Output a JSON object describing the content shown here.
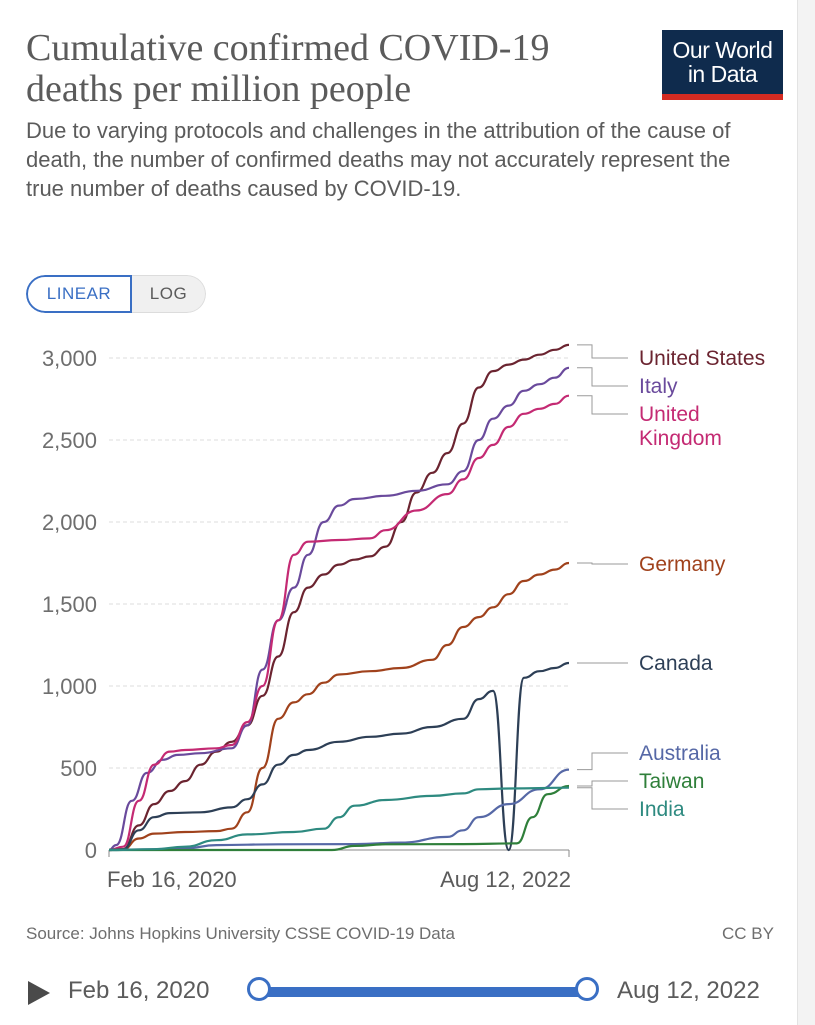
{
  "header": {
    "title": "Cumulative confirmed COVID-19 deaths per million people",
    "subtitle": "Due to varying protocols and challenges in the attribution of the cause of death, the number of confirmed deaths may not accurately represent the true number of deaths caused by COVID-19.",
    "logo_line1": "Our World",
    "logo_line2": "in Data"
  },
  "scale_toggle": {
    "linear": "LINEAR",
    "log": "LOG",
    "selected": "LINEAR"
  },
  "footer": {
    "source": "Source: Johns Hopkins University CSSE COVID-19 Data",
    "license": "CC BY"
  },
  "timeline": {
    "start": "Feb 16, 2020",
    "end": "Aug 12, 2022"
  },
  "colors": {
    "United States": "#6b2430",
    "Italy": "#6a4a9c",
    "United Kingdom": "#c42a73",
    "Germany": "#a0421c",
    "Canada": "#2d3f56",
    "Australia": "#5668a6",
    "Taiwan": "#2f7f3a",
    "India": "#2e8a80"
  },
  "chart_data": {
    "type": "line",
    "title": "Cumulative confirmed COVID-19 deaths per million people",
    "x_ticks": [
      "Feb 16, 2020",
      "Aug 12, 2022"
    ],
    "xlim": [
      "2020-02-16",
      "2022-08-12"
    ],
    "ylim": [
      0,
      3000
    ],
    "y_ticks": [
      0,
      500,
      1000,
      1500,
      2000,
      2500,
      3000
    ],
    "y_tick_labels": [
      "0",
      "500",
      "1,000",
      "1,500",
      "2,000",
      "2,500",
      "3,000"
    ],
    "grid": true,
    "legend": "right",
    "series": [
      {
        "name": "United States",
        "label_lines": [
          "United States"
        ],
        "points": [
          [
            "2020-02-16",
            0
          ],
          [
            "2020-03-15",
            5
          ],
          [
            "2020-04-15",
            150
          ],
          [
            "2020-05-15",
            280
          ],
          [
            "2020-06-15",
            360
          ],
          [
            "2020-07-15",
            420
          ],
          [
            "2020-08-15",
            520
          ],
          [
            "2020-09-15",
            600
          ],
          [
            "2020-10-15",
            660
          ],
          [
            "2020-11-15",
            760
          ],
          [
            "2020-12-15",
            940
          ],
          [
            "2021-01-15",
            1180
          ],
          [
            "2021-02-15",
            1450
          ],
          [
            "2021-03-15",
            1600
          ],
          [
            "2021-04-15",
            1680
          ],
          [
            "2021-05-15",
            1740
          ],
          [
            "2021-06-15",
            1770
          ],
          [
            "2021-07-15",
            1790
          ],
          [
            "2021-08-15",
            1850
          ],
          [
            "2021-09-15",
            2000
          ],
          [
            "2021-10-15",
            2180
          ],
          [
            "2021-11-15",
            2300
          ],
          [
            "2021-12-15",
            2420
          ],
          [
            "2022-01-15",
            2600
          ],
          [
            "2022-02-15",
            2820
          ],
          [
            "2022-03-15",
            2920
          ],
          [
            "2022-04-15",
            2960
          ],
          [
            "2022-05-15",
            2990
          ],
          [
            "2022-06-15",
            3020
          ],
          [
            "2022-07-15",
            3050
          ],
          [
            "2022-08-12",
            3080
          ]
        ]
      },
      {
        "name": "Italy",
        "label_lines": [
          "Italy"
        ],
        "points": [
          [
            "2020-02-16",
            0
          ],
          [
            "2020-03-01",
            30
          ],
          [
            "2020-04-01",
            300
          ],
          [
            "2020-05-01",
            470
          ],
          [
            "2020-06-01",
            550
          ],
          [
            "2020-07-01",
            580
          ],
          [
            "2020-08-15",
            590
          ],
          [
            "2020-10-15",
            620
          ],
          [
            "2020-11-15",
            760
          ],
          [
            "2020-12-15",
            1100
          ],
          [
            "2021-01-15",
            1400
          ],
          [
            "2021-02-15",
            1600
          ],
          [
            "2021-03-15",
            1800
          ],
          [
            "2021-04-15",
            2000
          ],
          [
            "2021-05-15",
            2100
          ],
          [
            "2021-06-15",
            2140
          ],
          [
            "2021-08-15",
            2160
          ],
          [
            "2021-10-15",
            2190
          ],
          [
            "2021-12-15",
            2230
          ],
          [
            "2022-01-15",
            2310
          ],
          [
            "2022-02-15",
            2500
          ],
          [
            "2022-03-15",
            2630
          ],
          [
            "2022-04-15",
            2710
          ],
          [
            "2022-05-15",
            2800
          ],
          [
            "2022-06-15",
            2840
          ],
          [
            "2022-07-15",
            2880
          ],
          [
            "2022-08-12",
            2940
          ]
        ]
      },
      {
        "name": "United Kingdom",
        "label_lines": [
          "United",
          "Kingdom"
        ],
        "points": [
          [
            "2020-02-16",
            0
          ],
          [
            "2020-03-15",
            20
          ],
          [
            "2020-04-15",
            300
          ],
          [
            "2020-05-15",
            520
          ],
          [
            "2020-06-15",
            600
          ],
          [
            "2020-07-15",
            610
          ],
          [
            "2020-09-15",
            620
          ],
          [
            "2020-10-15",
            640
          ],
          [
            "2020-11-15",
            780
          ],
          [
            "2020-12-15",
            1000
          ],
          [
            "2021-01-15",
            1400
          ],
          [
            "2021-02-15",
            1800
          ],
          [
            "2021-03-15",
            1880
          ],
          [
            "2021-05-15",
            1890
          ],
          [
            "2021-07-15",
            1900
          ],
          [
            "2021-08-15",
            1950
          ],
          [
            "2021-10-15",
            2070
          ],
          [
            "2021-12-15",
            2170
          ],
          [
            "2022-01-15",
            2260
          ],
          [
            "2022-02-15",
            2390
          ],
          [
            "2022-03-15",
            2470
          ],
          [
            "2022-04-15",
            2580
          ],
          [
            "2022-05-15",
            2660
          ],
          [
            "2022-06-15",
            2690
          ],
          [
            "2022-07-15",
            2720
          ],
          [
            "2022-08-12",
            2770
          ]
        ]
      },
      {
        "name": "Germany",
        "label_lines": [
          "Germany"
        ],
        "points": [
          [
            "2020-02-16",
            0
          ],
          [
            "2020-03-15",
            5
          ],
          [
            "2020-04-15",
            70
          ],
          [
            "2020-05-15",
            100
          ],
          [
            "2020-07-15",
            110
          ],
          [
            "2020-09-15",
            115
          ],
          [
            "2020-10-15",
            130
          ],
          [
            "2020-11-15",
            230
          ],
          [
            "2020-12-15",
            500
          ],
          [
            "2021-01-15",
            800
          ],
          [
            "2021-02-15",
            900
          ],
          [
            "2021-03-15",
            950
          ],
          [
            "2021-04-15",
            1020
          ],
          [
            "2021-05-15",
            1070
          ],
          [
            "2021-07-15",
            1090
          ],
          [
            "2021-09-15",
            1110
          ],
          [
            "2021-11-15",
            1160
          ],
          [
            "2021-12-15",
            1250
          ],
          [
            "2022-01-15",
            1360
          ],
          [
            "2022-02-15",
            1420
          ],
          [
            "2022-03-15",
            1480
          ],
          [
            "2022-04-15",
            1560
          ],
          [
            "2022-05-15",
            1640
          ],
          [
            "2022-06-15",
            1680
          ],
          [
            "2022-07-15",
            1710
          ],
          [
            "2022-08-12",
            1750
          ]
        ]
      },
      {
        "name": "Canada",
        "label_lines": [
          "Canada"
        ],
        "points": [
          [
            "2020-02-16",
            0
          ],
          [
            "2020-03-15",
            5
          ],
          [
            "2020-04-15",
            120
          ],
          [
            "2020-05-15",
            200
          ],
          [
            "2020-06-15",
            225
          ],
          [
            "2020-08-15",
            230
          ],
          [
            "2020-10-15",
            260
          ],
          [
            "2020-11-15",
            310
          ],
          [
            "2020-12-15",
            400
          ],
          [
            "2021-01-15",
            520
          ],
          [
            "2021-02-15",
            580
          ],
          [
            "2021-03-15",
            610
          ],
          [
            "2021-05-15",
            660
          ],
          [
            "2021-07-15",
            690
          ],
          [
            "2021-09-15",
            710
          ],
          [
            "2021-11-15",
            750
          ],
          [
            "2022-01-15",
            800
          ],
          [
            "2022-02-15",
            920
          ],
          [
            "2022-03-15",
            970
          ],
          [
            "2022-04-15,",
            0
          ],
          [
            "2022-05-15",
            1050
          ],
          [
            "2022-06-15",
            1090
          ],
          [
            "2022-07-15",
            1110
          ],
          [
            "2022-08-12",
            1140
          ]
        ]
      },
      {
        "name": "Australia",
        "label_lines": [
          "Australia"
        ],
        "points": [
          [
            "2020-02-16",
            0
          ],
          [
            "2020-04-15",
            3
          ],
          [
            "2020-07-15",
            10
          ],
          [
            "2020-09-15",
            30
          ],
          [
            "2021-01-15",
            35
          ],
          [
            "2021-06-15",
            36
          ],
          [
            "2021-09-15",
            45
          ],
          [
            "2021-12-15",
            80
          ],
          [
            "2022-01-15",
            120
          ],
          [
            "2022-02-15",
            200
          ],
          [
            "2022-04-15",
            280
          ],
          [
            "2022-06-15",
            370
          ],
          [
            "2022-08-12",
            490
          ]
        ]
      },
      {
        "name": "Taiwan",
        "label_lines": [
          "Taiwan"
        ],
        "points": [
          [
            "2020-02-16",
            0
          ],
          [
            "2021-05-01",
            0
          ],
          [
            "2021-06-15",
            25
          ],
          [
            "2021-08-15",
            35
          ],
          [
            "2022-01-15",
            36
          ],
          [
            "2022-05-01",
            40
          ],
          [
            "2022-06-01",
            200
          ],
          [
            "2022-07-01",
            340
          ],
          [
            "2022-08-12",
            390
          ]
        ]
      },
      {
        "name": "India",
        "label_lines": [
          "India"
        ],
        "points": [
          [
            "2020-02-16",
            0
          ],
          [
            "2020-05-15",
            5
          ],
          [
            "2020-07-15",
            20
          ],
          [
            "2020-09-15",
            60
          ],
          [
            "2020-11-15",
            95
          ],
          [
            "2021-02-15",
            110
          ],
          [
            "2021-04-15",
            130
          ],
          [
            "2021-05-15",
            200
          ],
          [
            "2021-06-15",
            270
          ],
          [
            "2021-08-15",
            305
          ],
          [
            "2021-11-15",
            330
          ],
          [
            "2022-01-15",
            345
          ],
          [
            "2022-02-15",
            370
          ],
          [
            "2022-04-15",
            375
          ],
          [
            "2022-08-12",
            380
          ]
        ]
      }
    ]
  }
}
